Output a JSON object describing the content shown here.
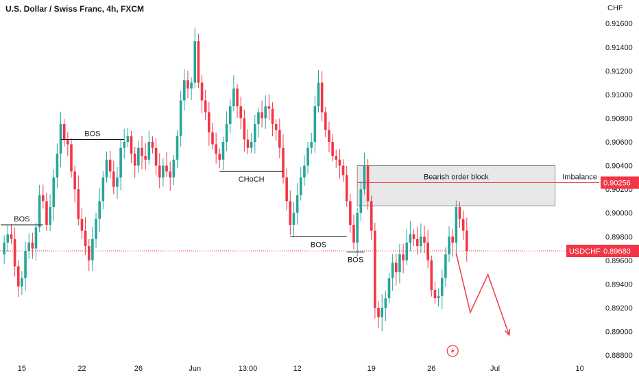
{
  "header": {
    "title": "U.S. Dollar / Swiss Franc, 4h, FXCM",
    "currency": "CHF"
  },
  "colors": {
    "up": "#26a69a",
    "down": "#f23645",
    "annotation": "#131722",
    "zone_fill": "#e8e8e8",
    "zone_border": "#8a8a8a",
    "red_line": "#f23645",
    "grid": "#f0f3fa"
  },
  "icons": {
    "event": "lightning-bolt-icon"
  },
  "chart_data": {
    "type": "candlestick",
    "symbol": "USDCHF",
    "timeframe": "4h",
    "y_axis": {
      "range": [
        0.8876,
        0.9174
      ],
      "ticks": [
        "0.91600",
        "0.91400",
        "0.91200",
        "0.91000",
        "0.90800",
        "0.90600",
        "0.90400",
        "0.90200",
        "0.90000",
        "0.89800",
        "0.89600",
        "0.89400",
        "0.89200",
        "0.89000",
        "0.88800"
      ],
      "tick_values": [
        0.916,
        0.914,
        0.912,
        0.91,
        0.908,
        0.906,
        0.904,
        0.902,
        0.9,
        0.898,
        0.896,
        0.894,
        0.892,
        0.89,
        0.888
      ]
    },
    "x_axis": {
      "ticks": [
        "15",
        "22",
        "26",
        "Jun",
        "13:00",
        "12",
        "19",
        "26",
        "Jul",
        "10"
      ],
      "tick_bar_index": [
        6,
        23,
        39,
        55,
        70,
        84,
        105,
        122,
        140,
        164
      ]
    },
    "grid": false,
    "price_series": [
      0.8965,
      0.8975,
      0.8982,
      0.8978,
      0.8955,
      0.8938,
      0.8945,
      0.8968,
      0.8975,
      0.897,
      0.8988,
      0.9015,
      0.901,
      0.899,
      0.9005,
      0.903,
      0.905,
      0.9075,
      0.9062,
      0.9058,
      0.9035,
      0.902,
      0.8995,
      0.8985,
      0.8972,
      0.896,
      0.8978,
      0.8995,
      0.901,
      0.903,
      0.9045,
      0.9035,
      0.9022,
      0.903,
      0.9055,
      0.906,
      0.9065,
      0.905,
      0.904,
      0.9055,
      0.9048,
      0.9045,
      0.906,
      0.9055,
      0.904,
      0.903,
      0.904,
      0.9035,
      0.903,
      0.9045,
      0.9065,
      0.9095,
      0.9112,
      0.9105,
      0.911,
      0.9145,
      0.911,
      0.9095,
      0.9085,
      0.9068,
      0.9058,
      0.905,
      0.9045,
      0.906,
      0.9075,
      0.909,
      0.9105,
      0.909,
      0.908,
      0.9062,
      0.9055,
      0.906,
      0.9075,
      0.9085,
      0.908,
      0.909,
      0.9088,
      0.9075,
      0.907,
      0.9055,
      0.903,
      0.901,
      0.899,
      0.9,
      0.9015,
      0.903,
      0.904,
      0.9055,
      0.906,
      0.909,
      0.911,
      0.9085,
      0.907,
      0.906,
      0.9048,
      0.9045,
      0.904,
      0.9032,
      0.901,
      0.899,
      0.8975,
      0.9,
      0.902,
      0.904,
      0.901,
      0.8985,
      0.892,
      0.8912,
      0.892,
      0.8928,
      0.8945,
      0.8958,
      0.895,
      0.8965,
      0.896,
      0.8975,
      0.8982,
      0.8978,
      0.8972,
      0.898,
      0.8975,
      0.896,
      0.8935,
      0.8928,
      0.893,
      0.8945,
      0.8965,
      0.898,
      0.8975,
      0.9005,
      0.8995,
      0.8985,
      0.8968
    ],
    "levels": [
      {
        "label": "BOS",
        "price": 0.899,
        "from_bar": 0,
        "to_bar": 12
      },
      {
        "label": "BOS",
        "price": 0.9062,
        "from_bar": 17,
        "to_bar": 35
      },
      {
        "label": "CHoCH",
        "price": 0.9035,
        "from_bar": 62,
        "to_bar": 80
      },
      {
        "label": "BOS",
        "price": 0.898,
        "from_bar": 82,
        "to_bar": 98
      },
      {
        "label": "BOS",
        "price": 0.8967,
        "from_bar": 98,
        "to_bar": 103
      }
    ],
    "zone": {
      "label": "Bearish order block",
      "top": 0.904,
      "bottom": 0.9006,
      "from_bar": 101,
      "to_bar": 157
    },
    "imbalance": {
      "label": "Imbalance",
      "price": 0.90256,
      "value_text": "0.90256"
    },
    "current_price": {
      "symbol": "USDCHF",
      "price": 0.8968,
      "value_text": "0.89680"
    },
    "projection": [
      [
        129,
        0.8966
      ],
      [
        133,
        0.8916
      ],
      [
        138,
        0.8948
      ],
      [
        144,
        0.8897
      ]
    ],
    "event_bar": 128
  }
}
